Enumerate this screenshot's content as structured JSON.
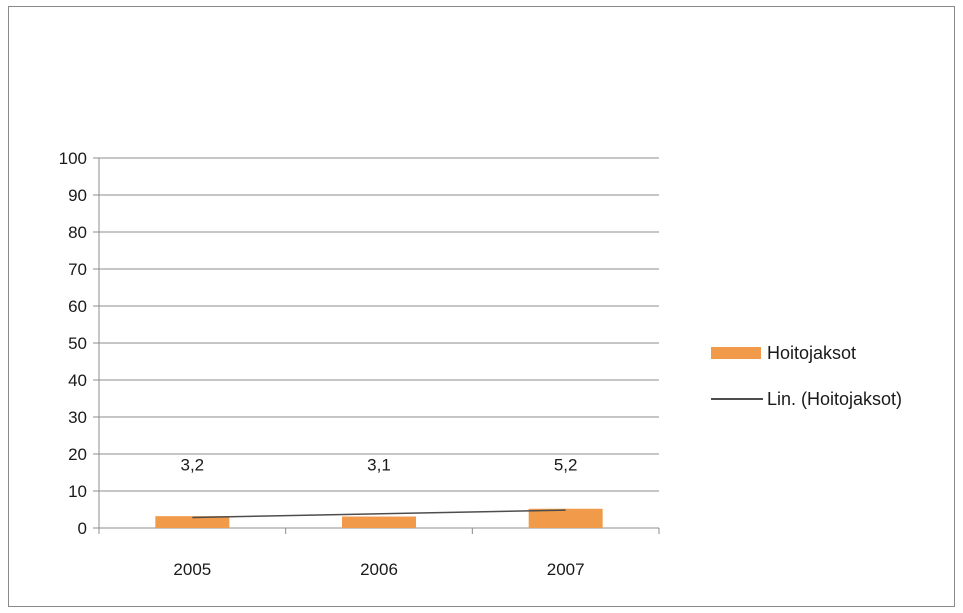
{
  "chart_data": {
    "type": "bar",
    "categories": [
      "2005",
      "2006",
      "2007"
    ],
    "series": [
      {
        "name": "Hoitojaksot",
        "values": [
          3.2,
          3.1,
          5.2
        ],
        "color": "#f09a4a"
      }
    ],
    "data_labels": [
      "3,2",
      "3,1",
      "5,2"
    ],
    "trendline": {
      "name": "Lin. (Hoitojaksot)",
      "type": "linear",
      "color": "#4d4d4d"
    },
    "y_ticks": [
      "0",
      "10",
      "20",
      "30",
      "40",
      "50",
      "60",
      "70",
      "80",
      "90",
      "100"
    ],
    "ylim": [
      0,
      100
    ],
    "grid": true,
    "legend_position": "right",
    "title": "",
    "xlabel": "",
    "ylabel": ""
  }
}
